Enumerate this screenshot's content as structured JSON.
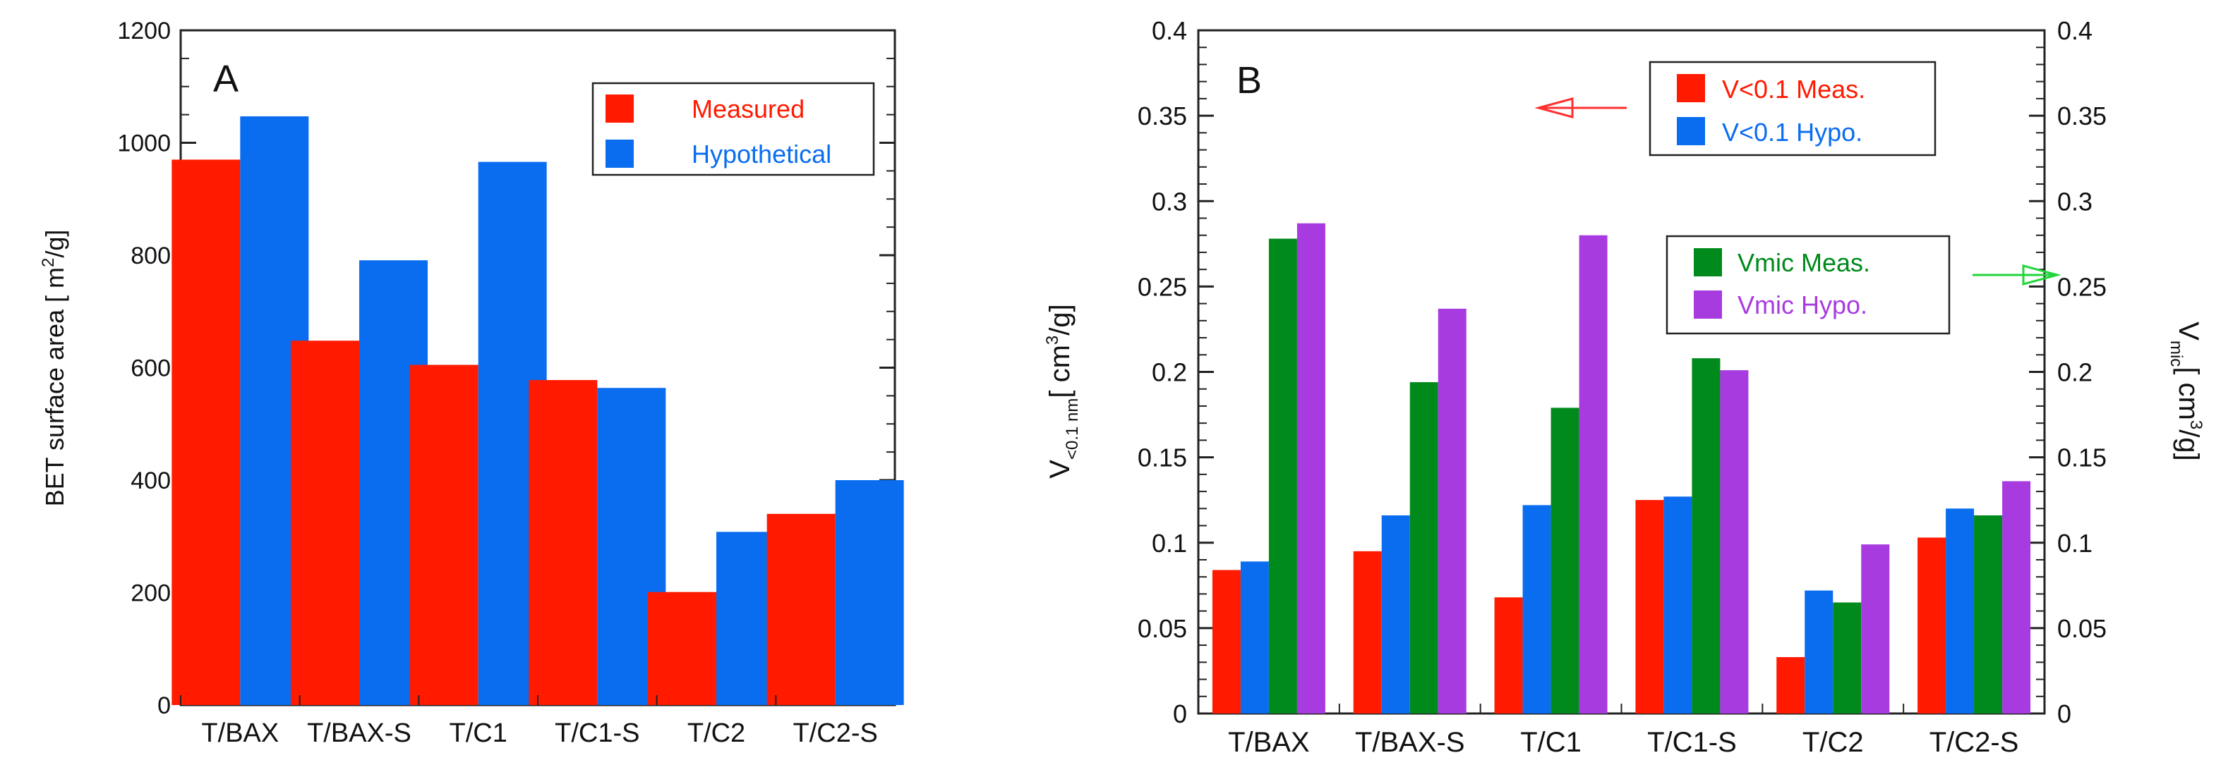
{
  "chart_data": [
    {
      "type": "bar",
      "panel_label": "A",
      "categories": [
        "T/BAX",
        "T/BAX-S",
        "T/C1",
        "T/C1-S",
        "T/C2",
        "T/C2-S"
      ],
      "ylabel": "BET surface area [ m",
      "ylabel_sup": "2",
      "ylabel_end": "/g]",
      "xlabel": "",
      "ylim": [
        0,
        1200
      ],
      "yticks": [
        0,
        200,
        400,
        600,
        800,
        1000,
        1200
      ],
      "ytick_labels": [
        "0",
        "200",
        "400",
        "600",
        "800",
        "1000",
        "1200"
      ],
      "legend": "top-right",
      "series": [
        {
          "name": "Measured",
          "color": "#ff1a00",
          "values": [
            970,
            648,
            605,
            578,
            201,
            340
          ]
        },
        {
          "name": "Hypothetical",
          "color": "#0a6df0",
          "values": [
            1047,
            791,
            966,
            564,
            308,
            400
          ]
        }
      ]
    },
    {
      "type": "bar",
      "panel_label": "B",
      "categories": [
        "T/BAX",
        "T/BAX-S",
        "T/C1",
        "T/C1-S",
        "T/C2",
        "T/C2-S"
      ],
      "ylabel_left": "V",
      "ylabel_left_sub": "<0.1 nm",
      "ylabel_left_end": "[ cm",
      "ylabel_left_sup": "3",
      "ylabel_left_tail": "/g]",
      "ylabel_right": "V",
      "ylabel_right_sub": "mic",
      "ylabel_right_end": "[ cm",
      "ylabel_right_sup": "3",
      "ylabel_right_tail": "/g]",
      "ylim": [
        0,
        0.4
      ],
      "yticks": [
        0,
        0.05,
        0.1,
        0.15,
        0.2,
        0.25,
        0.3,
        0.35,
        0.4
      ],
      "ytick_labels": [
        "0",
        "0.05",
        "0.1",
        "0.15",
        "0.2",
        "0.25",
        "0.3",
        "0.35",
        "0.4"
      ],
      "legend": "top-right",
      "series": [
        {
          "name": "V<0.1 Meas.",
          "color": "#ff1a00",
          "axis": "left",
          "values": [
            0.084,
            0.095,
            0.068,
            0.125,
            0.033,
            0.103
          ]
        },
        {
          "name": "V<0.1 Hypo.",
          "color": "#0a6df0",
          "axis": "left",
          "values": [
            0.089,
            0.116,
            0.122,
            0.127,
            0.072,
            0.12
          ]
        },
        {
          "name": "Vmic Meas.",
          "color": "#008a1c",
          "axis": "right",
          "values": [
            0.278,
            0.194,
            0.179,
            0.208,
            0.065,
            0.116
          ]
        },
        {
          "name": "Vmic Hypo.",
          "color": "#a83be0",
          "axis": "right",
          "values": [
            0.287,
            0.237,
            0.28,
            0.201,
            0.099,
            0.136
          ]
        }
      ],
      "arrow_left_color": "#ff3030",
      "arrow_right_color": "#22d63a"
    }
  ]
}
